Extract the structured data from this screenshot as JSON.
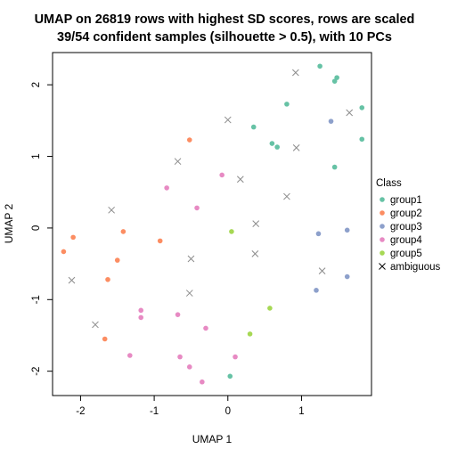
{
  "chart_data": {
    "type": "scatter",
    "title_lines": [
      "UMAP on 26819 rows with highest SD scores, rows are scaled",
      "39/54 confident samples (silhouette > 0.5), with 10 PCs"
    ],
    "xlabel": "UMAP 1",
    "ylabel": "UMAP 2",
    "xlim": [
      -2.38,
      1.95
    ],
    "ylim": [
      -2.34,
      2.45
    ],
    "x_ticks": [
      -2,
      -1,
      0,
      1
    ],
    "y_ticks": [
      -2,
      -1,
      0,
      1,
      2
    ],
    "legend": {
      "title": "Class",
      "placement": "right",
      "entries": [
        {
          "label": "group1",
          "color": "#66C2A5",
          "shape": "circle"
        },
        {
          "label": "group2",
          "color": "#FC8D62",
          "shape": "circle"
        },
        {
          "label": "group3",
          "color": "#8DA0CB",
          "shape": "circle"
        },
        {
          "label": "group4",
          "color": "#E78AC3",
          "shape": "circle"
        },
        {
          "label": "group5",
          "color": "#A6D854",
          "shape": "circle"
        },
        {
          "label": "ambiguous",
          "color": "#000000",
          "shape": "cross"
        }
      ]
    },
    "series": [
      {
        "name": "group1",
        "color": "#66C2A5",
        "points": [
          [
            1.25,
            2.26
          ],
          [
            1.48,
            2.1
          ],
          [
            1.45,
            2.05
          ],
          [
            0.8,
            1.73
          ],
          [
            1.82,
            1.68
          ],
          [
            0.35,
            1.41
          ],
          [
            0.6,
            1.18
          ],
          [
            0.67,
            1.13
          ],
          [
            1.45,
            0.85
          ],
          [
            1.82,
            1.24
          ],
          [
            0.03,
            -2.07
          ]
        ]
      },
      {
        "name": "group2",
        "color": "#FC8D62",
        "points": [
          [
            -0.52,
            1.23
          ],
          [
            -2.1,
            -0.13
          ],
          [
            -2.23,
            -0.33
          ],
          [
            -1.42,
            -0.05
          ],
          [
            -0.92,
            -0.18
          ],
          [
            -1.5,
            -0.45
          ],
          [
            -1.63,
            -0.72
          ],
          [
            -1.67,
            -1.55
          ]
        ]
      },
      {
        "name": "group3",
        "color": "#8DA0CB",
        "points": [
          [
            1.4,
            1.49
          ],
          [
            1.23,
            -0.08
          ],
          [
            1.62,
            -0.03
          ],
          [
            1.2,
            -0.87
          ],
          [
            1.62,
            -0.68
          ]
        ]
      },
      {
        "name": "group4",
        "color": "#E78AC3",
        "points": [
          [
            -0.08,
            0.74
          ],
          [
            -0.83,
            0.56
          ],
          [
            -0.42,
            0.28
          ],
          [
            -1.18,
            -1.15
          ],
          [
            -1.18,
            -1.25
          ],
          [
            -0.68,
            -1.21
          ],
          [
            -0.3,
            -1.4
          ],
          [
            -1.33,
            -1.78
          ],
          [
            -0.65,
            -1.8
          ],
          [
            -0.52,
            -1.94
          ],
          [
            0.1,
            -1.8
          ],
          [
            -0.35,
            -2.15
          ]
        ]
      },
      {
        "name": "group5",
        "color": "#A6D854",
        "points": [
          [
            0.05,
            -0.05
          ],
          [
            0.57,
            -1.12
          ],
          [
            0.3,
            -1.48
          ]
        ]
      },
      {
        "name": "ambiguous",
        "color": "#000000",
        "marker": "cross",
        "points": [
          [
            0.92,
            2.17
          ],
          [
            0.0,
            1.51
          ],
          [
            0.93,
            1.12
          ],
          [
            -0.68,
            0.93
          ],
          [
            0.17,
            0.68
          ],
          [
            0.8,
            0.44
          ],
          [
            1.65,
            1.61
          ],
          [
            -1.58,
            0.25
          ],
          [
            0.38,
            0.06
          ],
          [
            -0.5,
            -0.43
          ],
          [
            0.37,
            -0.36
          ],
          [
            1.28,
            -0.6
          ],
          [
            -2.12,
            -0.73
          ],
          [
            -0.52,
            -0.91
          ],
          [
            -1.8,
            -1.35
          ]
        ]
      }
    ]
  }
}
